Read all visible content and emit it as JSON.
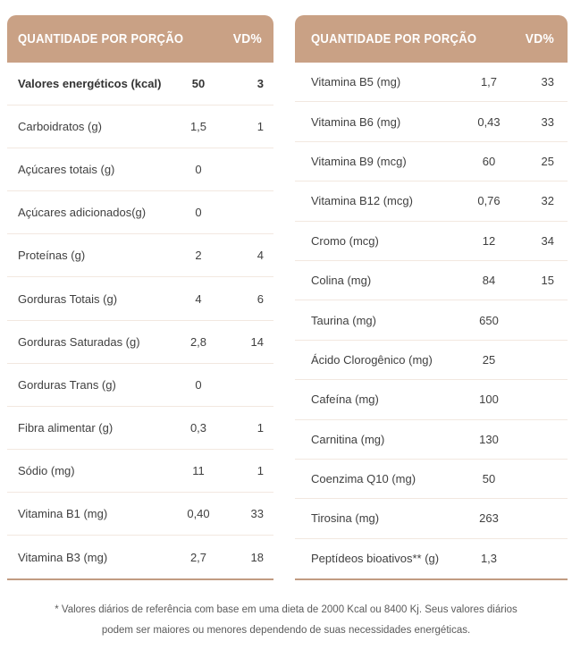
{
  "colors": {
    "header_bg": "#c9a185",
    "header_text": "#ffffff",
    "row_text": "#404040",
    "divider": "#f2e8e0",
    "table_bottom_border": "#c19c82",
    "footnote_text": "#5b5b5b"
  },
  "tables": [
    {
      "id": "macronutrients",
      "header": {
        "quantity_label": "QUANTIDADE POR PORÇÃO",
        "vd_label": "VD%"
      },
      "rows": [
        {
          "label": "Valores energéticos (kcal)",
          "qty": "50",
          "vd": "3",
          "bold": true
        },
        {
          "label": "Carboidratos (g)",
          "qty": "1,5",
          "vd": "1"
        },
        {
          "label": "Açúcares totais (g)",
          "qty": "0",
          "vd": ""
        },
        {
          "label": "Açúcares adicionados(g)",
          "qty": "0",
          "vd": ""
        },
        {
          "label": "Proteínas (g)",
          "qty": "2",
          "vd": "4"
        },
        {
          "label": "Gorduras Totais (g)",
          "qty": "4",
          "vd": "6"
        },
        {
          "label": "Gorduras Saturadas (g)",
          "qty": "2,8",
          "vd": "14"
        },
        {
          "label": "Gorduras Trans (g)",
          "qty": "0",
          "vd": ""
        },
        {
          "label": "Fibra alimentar (g)",
          "qty": "0,3",
          "vd": "1"
        },
        {
          "label": "Sódio (mg)",
          "qty": "11",
          "vd": "1"
        },
        {
          "label": "Vitamina B1 (mg)",
          "qty": "0,40",
          "vd": "33"
        },
        {
          "label": "Vitamina B3 (mg)",
          "qty": "2,7",
          "vd": "18"
        }
      ]
    },
    {
      "id": "micronutrients",
      "header": {
        "quantity_label": "QUANTIDADE POR PORÇÃO",
        "vd_label": "VD%"
      },
      "rows": [
        {
          "label": "Vitamina B5 (mg)",
          "qty": "1,7",
          "vd": "33"
        },
        {
          "label": "Vitamina B6 (mg)",
          "qty": "0,43",
          "vd": "33"
        },
        {
          "label": "Vitamina B9 (mcg)",
          "qty": "60",
          "vd": "25"
        },
        {
          "label": "Vitamina B12 (mcg)",
          "qty": "0,76",
          "vd": "32"
        },
        {
          "label": "Cromo (mcg)",
          "qty": "12",
          "vd": "34"
        },
        {
          "label": "Colina (mg)",
          "qty": "84",
          "vd": "15"
        },
        {
          "label": "Taurina (mg)",
          "qty": "650",
          "vd": ""
        },
        {
          "label": "Ácido Clorogênico (mg)",
          "qty": "25",
          "vd": ""
        },
        {
          "label": "Cafeína (mg)",
          "qty": "100",
          "vd": ""
        },
        {
          "label": "Carnitina (mg)",
          "qty": "130",
          "vd": ""
        },
        {
          "label": "Coenzima Q10 (mg)",
          "qty": "50",
          "vd": ""
        },
        {
          "label": "Tirosina (mg)",
          "qty": "263",
          "vd": ""
        },
        {
          "label": "Peptídeos bioativos** (g)",
          "qty": "1,3",
          "vd": ""
        }
      ]
    }
  ],
  "footnote": {
    "line1": "* Valores diários de referência com base em uma dieta de 2000 Kcal ou 8400 Kj. Seus valores diários",
    "line2": "podem ser maiores ou menores dependendo de suas necessidades energéticas."
  }
}
